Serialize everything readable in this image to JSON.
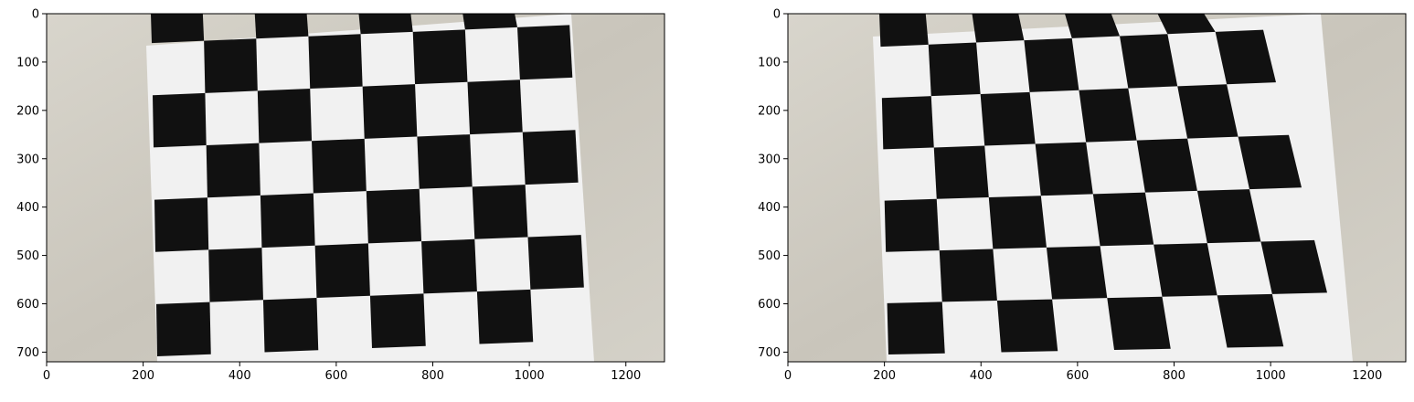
{
  "figure": {
    "panels": [
      {
        "name": "left",
        "x_ticks": [
          "0",
          "200",
          "400",
          "600",
          "800",
          "1000",
          "1200"
        ],
        "y_ticks": [
          "0",
          "100",
          "200",
          "300",
          "400",
          "500",
          "600",
          "700"
        ],
        "xlim": [
          0,
          1280
        ],
        "ylim": [
          720,
          0
        ],
        "image_description": "Photo of a black-and-white checkerboard calibration sheet on a textured beige wall, with lens distortion."
      },
      {
        "name": "right",
        "x_ticks": [
          "0",
          "200",
          "400",
          "600",
          "800",
          "1000",
          "1200"
        ],
        "y_ticks": [
          "0",
          "100",
          "200",
          "300",
          "400",
          "500",
          "600",
          "700"
        ],
        "xlim": [
          0,
          1280
        ],
        "ylim": [
          720,
          0
        ],
        "image_description": "Same checkerboard photo after distortion correction."
      }
    ],
    "colors": {
      "wall": "#cfcbc1",
      "paper": "#f1f1f1",
      "square": "#111111"
    }
  }
}
